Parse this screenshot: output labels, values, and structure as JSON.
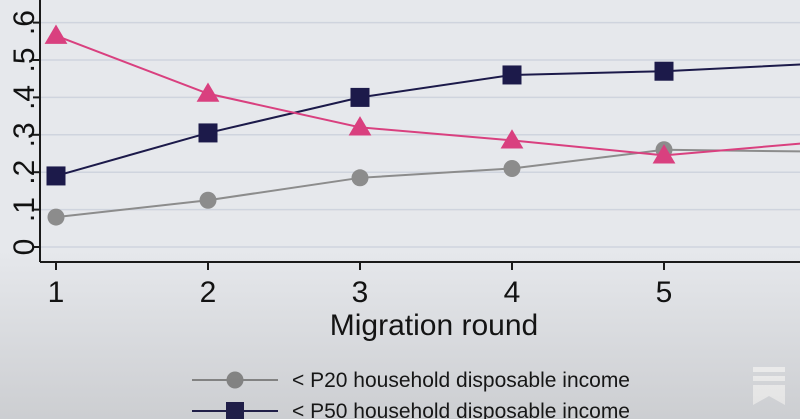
{
  "chart_data": {
    "type": "line",
    "xlabel": "Migration round",
    "x": [
      1,
      2,
      3,
      4,
      5,
      6
    ],
    "x_ticks": [
      "1",
      "2",
      "3",
      "4",
      "5"
    ],
    "xlim": [
      0.93,
      6.0
    ],
    "y_ticks": [
      "0",
      ".1",
      ".2",
      ".3",
      ".4",
      ".5",
      ".6"
    ],
    "ylim": [
      -0.04,
      0.67
    ],
    "grid": true,
    "legend_position": "bottom",
    "series": [
      {
        "name": "< P20 household disposable income",
        "color": "#8c8c8c",
        "marker": "circle",
        "values": [
          0.08,
          0.125,
          0.185,
          0.21,
          0.26,
          0.255
        ]
      },
      {
        "name": "< P50 household disposable income",
        "color": "#1c1a4a",
        "marker": "square",
        "values": [
          0.19,
          0.305,
          0.4,
          0.46,
          0.47,
          0.49
        ]
      },
      {
        "name": "",
        "color": "#d9407f",
        "marker": "triangle",
        "values": [
          0.565,
          0.41,
          0.32,
          0.285,
          0.245,
          0.28
        ]
      }
    ]
  },
  "colors": {
    "background": "#e6e8ec",
    "grid": "#cfd4de",
    "axis": "#1a1a1a"
  },
  "icons": {
    "brand": "bookmark-stack-icon"
  }
}
